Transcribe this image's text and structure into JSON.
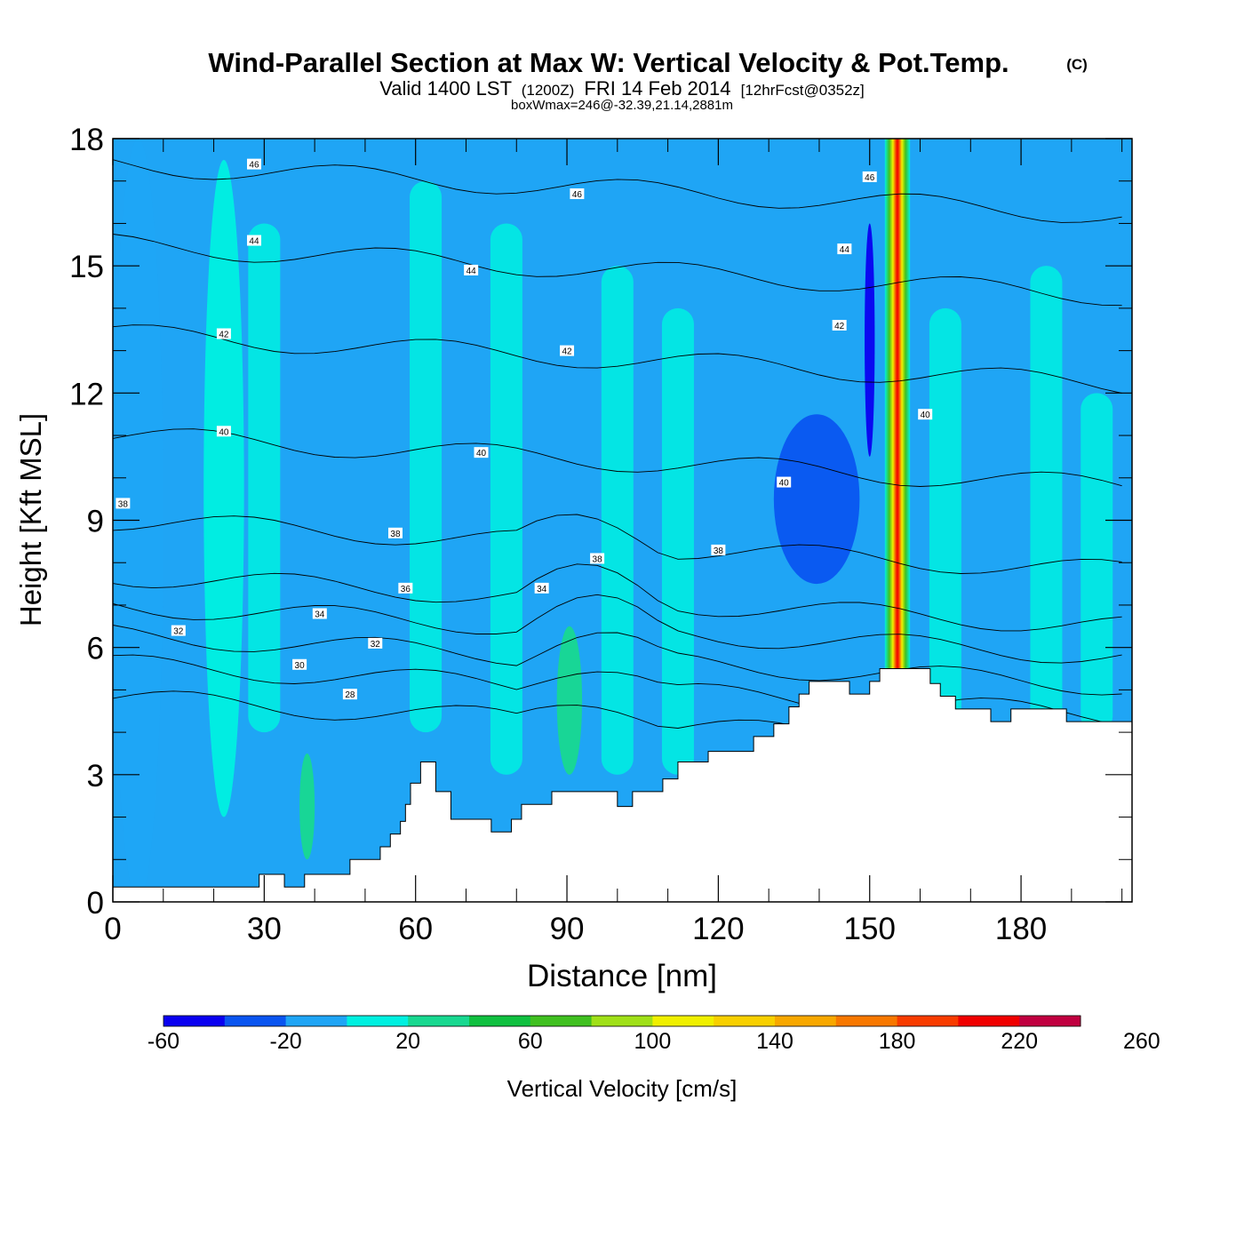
{
  "chart_data": {
    "type": "heatmap",
    "title": "Wind-Parallel Section at Max W: Vertical Velocity & Pot.Temp.",
    "title_mark": "(C)",
    "subtitle_parts": [
      "Valid 1400 LST",
      "(1200Z)",
      "FRI 14 Feb 2014",
      "[12hrFcst@0352z]"
    ],
    "info": "boxWmax=246@-32.39,21.14,2881m",
    "xlabel": "Distance [nm]",
    "ylabel": "Height [Kft MSL]",
    "xlim": [
      0,
      202
    ],
    "ylim": [
      0,
      18
    ],
    "xticks": [
      0,
      30,
      60,
      90,
      120,
      150,
      180
    ],
    "yticks": [
      0,
      3,
      6,
      9,
      12,
      15,
      18
    ],
    "colorbar": {
      "label": "Vertical Velocity [cm/s]",
      "min": -60,
      "step": 20,
      "colors": [
        "#0a00f0",
        "#0a55f0",
        "#1fa5f5",
        "#00f0e0",
        "#18d890",
        "#10c040",
        "#40c020",
        "#a0e018",
        "#f0f000",
        "#f8d000",
        "#f8a800",
        "#f87800",
        "#f83c00",
        "#f00000",
        "#c00040"
      ],
      "tick_labels": [
        "-60",
        "-20",
        "20",
        "60",
        "100",
        "140",
        "180",
        "220",
        "260"
      ],
      "tick_values": [
        -60,
        -20,
        20,
        60,
        100,
        140,
        180,
        220,
        260
      ]
    },
    "terrain": [
      [
        0,
        0.35
      ],
      [
        29,
        0.35
      ],
      [
        29,
        0.65
      ],
      [
        34,
        0.65
      ],
      [
        34,
        0.35
      ],
      [
        38,
        0.35
      ],
      [
        38,
        0.65
      ],
      [
        47,
        0.65
      ],
      [
        47,
        1.0
      ],
      [
        53,
        1.0
      ],
      [
        53,
        1.3
      ],
      [
        55,
        1.3
      ],
      [
        55,
        1.6
      ],
      [
        57,
        1.6
      ],
      [
        57,
        1.9
      ],
      [
        58,
        1.9
      ],
      [
        58,
        2.3
      ],
      [
        59,
        2.3
      ],
      [
        59,
        2.8
      ],
      [
        61,
        2.8
      ],
      [
        61,
        3.3
      ],
      [
        64,
        3.3
      ],
      [
        64,
        2.6
      ],
      [
        67,
        2.6
      ],
      [
        67,
        1.95
      ],
      [
        75,
        1.95
      ],
      [
        75,
        1.65
      ],
      [
        79,
        1.65
      ],
      [
        79,
        1.95
      ],
      [
        81,
        1.95
      ],
      [
        81,
        2.3
      ],
      [
        87,
        2.3
      ],
      [
        87,
        2.6
      ],
      [
        100,
        2.6
      ],
      [
        100,
        2.25
      ],
      [
        103,
        2.25
      ],
      [
        103,
        2.6
      ],
      [
        109,
        2.6
      ],
      [
        109,
        2.9
      ],
      [
        112,
        2.9
      ],
      [
        112,
        3.3
      ],
      [
        118,
        3.3
      ],
      [
        118,
        3.55
      ],
      [
        127,
        3.55
      ],
      [
        127,
        3.9
      ],
      [
        131,
        3.9
      ],
      [
        131,
        4.2
      ],
      [
        134,
        4.2
      ],
      [
        134,
        4.6
      ],
      [
        136,
        4.6
      ],
      [
        136,
        4.9
      ],
      [
        138,
        4.9
      ],
      [
        138,
        5.2
      ],
      [
        146,
        5.2
      ],
      [
        146,
        4.9
      ],
      [
        150,
        4.9
      ],
      [
        150,
        5.2
      ],
      [
        152,
        5.2
      ],
      [
        152,
        5.5
      ],
      [
        162,
        5.5
      ],
      [
        162,
        5.15
      ],
      [
        164,
        5.15
      ],
      [
        164,
        4.85
      ],
      [
        167,
        4.85
      ],
      [
        167,
        4.55
      ],
      [
        174,
        4.55
      ],
      [
        174,
        4.25
      ],
      [
        178,
        4.25
      ],
      [
        178,
        4.55
      ],
      [
        189,
        4.55
      ],
      [
        189,
        4.25
      ],
      [
        202,
        4.25
      ]
    ],
    "w_field": [
      {
        "x": [
          0,
          10
        ],
        "y": [
          0,
          18
        ],
        "value": -10
      },
      {
        "x": [
          18,
          26
        ],
        "y": [
          2,
          17.5
        ],
        "value": 10
      },
      {
        "x": [
          37,
          40
        ],
        "y": [
          1,
          3.5
        ],
        "value": 30
      },
      {
        "x": [
          88,
          93
        ],
        "y": [
          3,
          6.5
        ],
        "value": 30
      },
      {
        "x": [
          131,
          148
        ],
        "y": [
          7.5,
          11.5
        ],
        "value": -30
      },
      {
        "x": [
          149,
          151
        ],
        "y": [
          10.5,
          16
        ],
        "value": -55
      },
      {
        "x": [
          153,
          158
        ],
        "y": [
          5.5,
          18
        ],
        "value": 246
      }
    ],
    "theta_contour_labels": [
      {
        "text": "46",
        "x": 28,
        "y": 17.4
      },
      {
        "text": "46",
        "x": 92,
        "y": 16.7
      },
      {
        "text": "46",
        "x": 150,
        "y": 17.1
      },
      {
        "text": "44",
        "x": 28,
        "y": 15.6
      },
      {
        "text": "44",
        "x": 71,
        "y": 14.9
      },
      {
        "text": "44",
        "x": 145,
        "y": 15.4
      },
      {
        "text": "42",
        "x": 22,
        "y": 13.4
      },
      {
        "text": "42",
        "x": 90,
        "y": 13.0
      },
      {
        "text": "42",
        "x": 144,
        "y": 13.6
      },
      {
        "text": "40",
        "x": 22,
        "y": 11.1
      },
      {
        "text": "40",
        "x": 73,
        "y": 10.6
      },
      {
        "text": "40",
        "x": 133,
        "y": 9.9
      },
      {
        "text": "40",
        "x": 161,
        "y": 11.5
      },
      {
        "text": "38",
        "x": 2,
        "y": 9.4
      },
      {
        "text": "38",
        "x": 56,
        "y": 8.7
      },
      {
        "text": "38",
        "x": 96,
        "y": 8.1
      },
      {
        "text": "38",
        "x": 120,
        "y": 8.3
      },
      {
        "text": "36",
        "x": 58,
        "y": 7.4
      },
      {
        "text": "34",
        "x": 85,
        "y": 7.4
      },
      {
        "text": "34",
        "x": 41,
        "y": 6.8
      },
      {
        "text": "32",
        "x": 13,
        "y": 6.4
      },
      {
        "text": "32",
        "x": 52,
        "y": 6.1
      },
      {
        "text": "30",
        "x": 37,
        "y": 5.6
      },
      {
        "text": "28",
        "x": 47,
        "y": 4.9
      }
    ],
    "grid": false,
    "legend": "bottom"
  }
}
